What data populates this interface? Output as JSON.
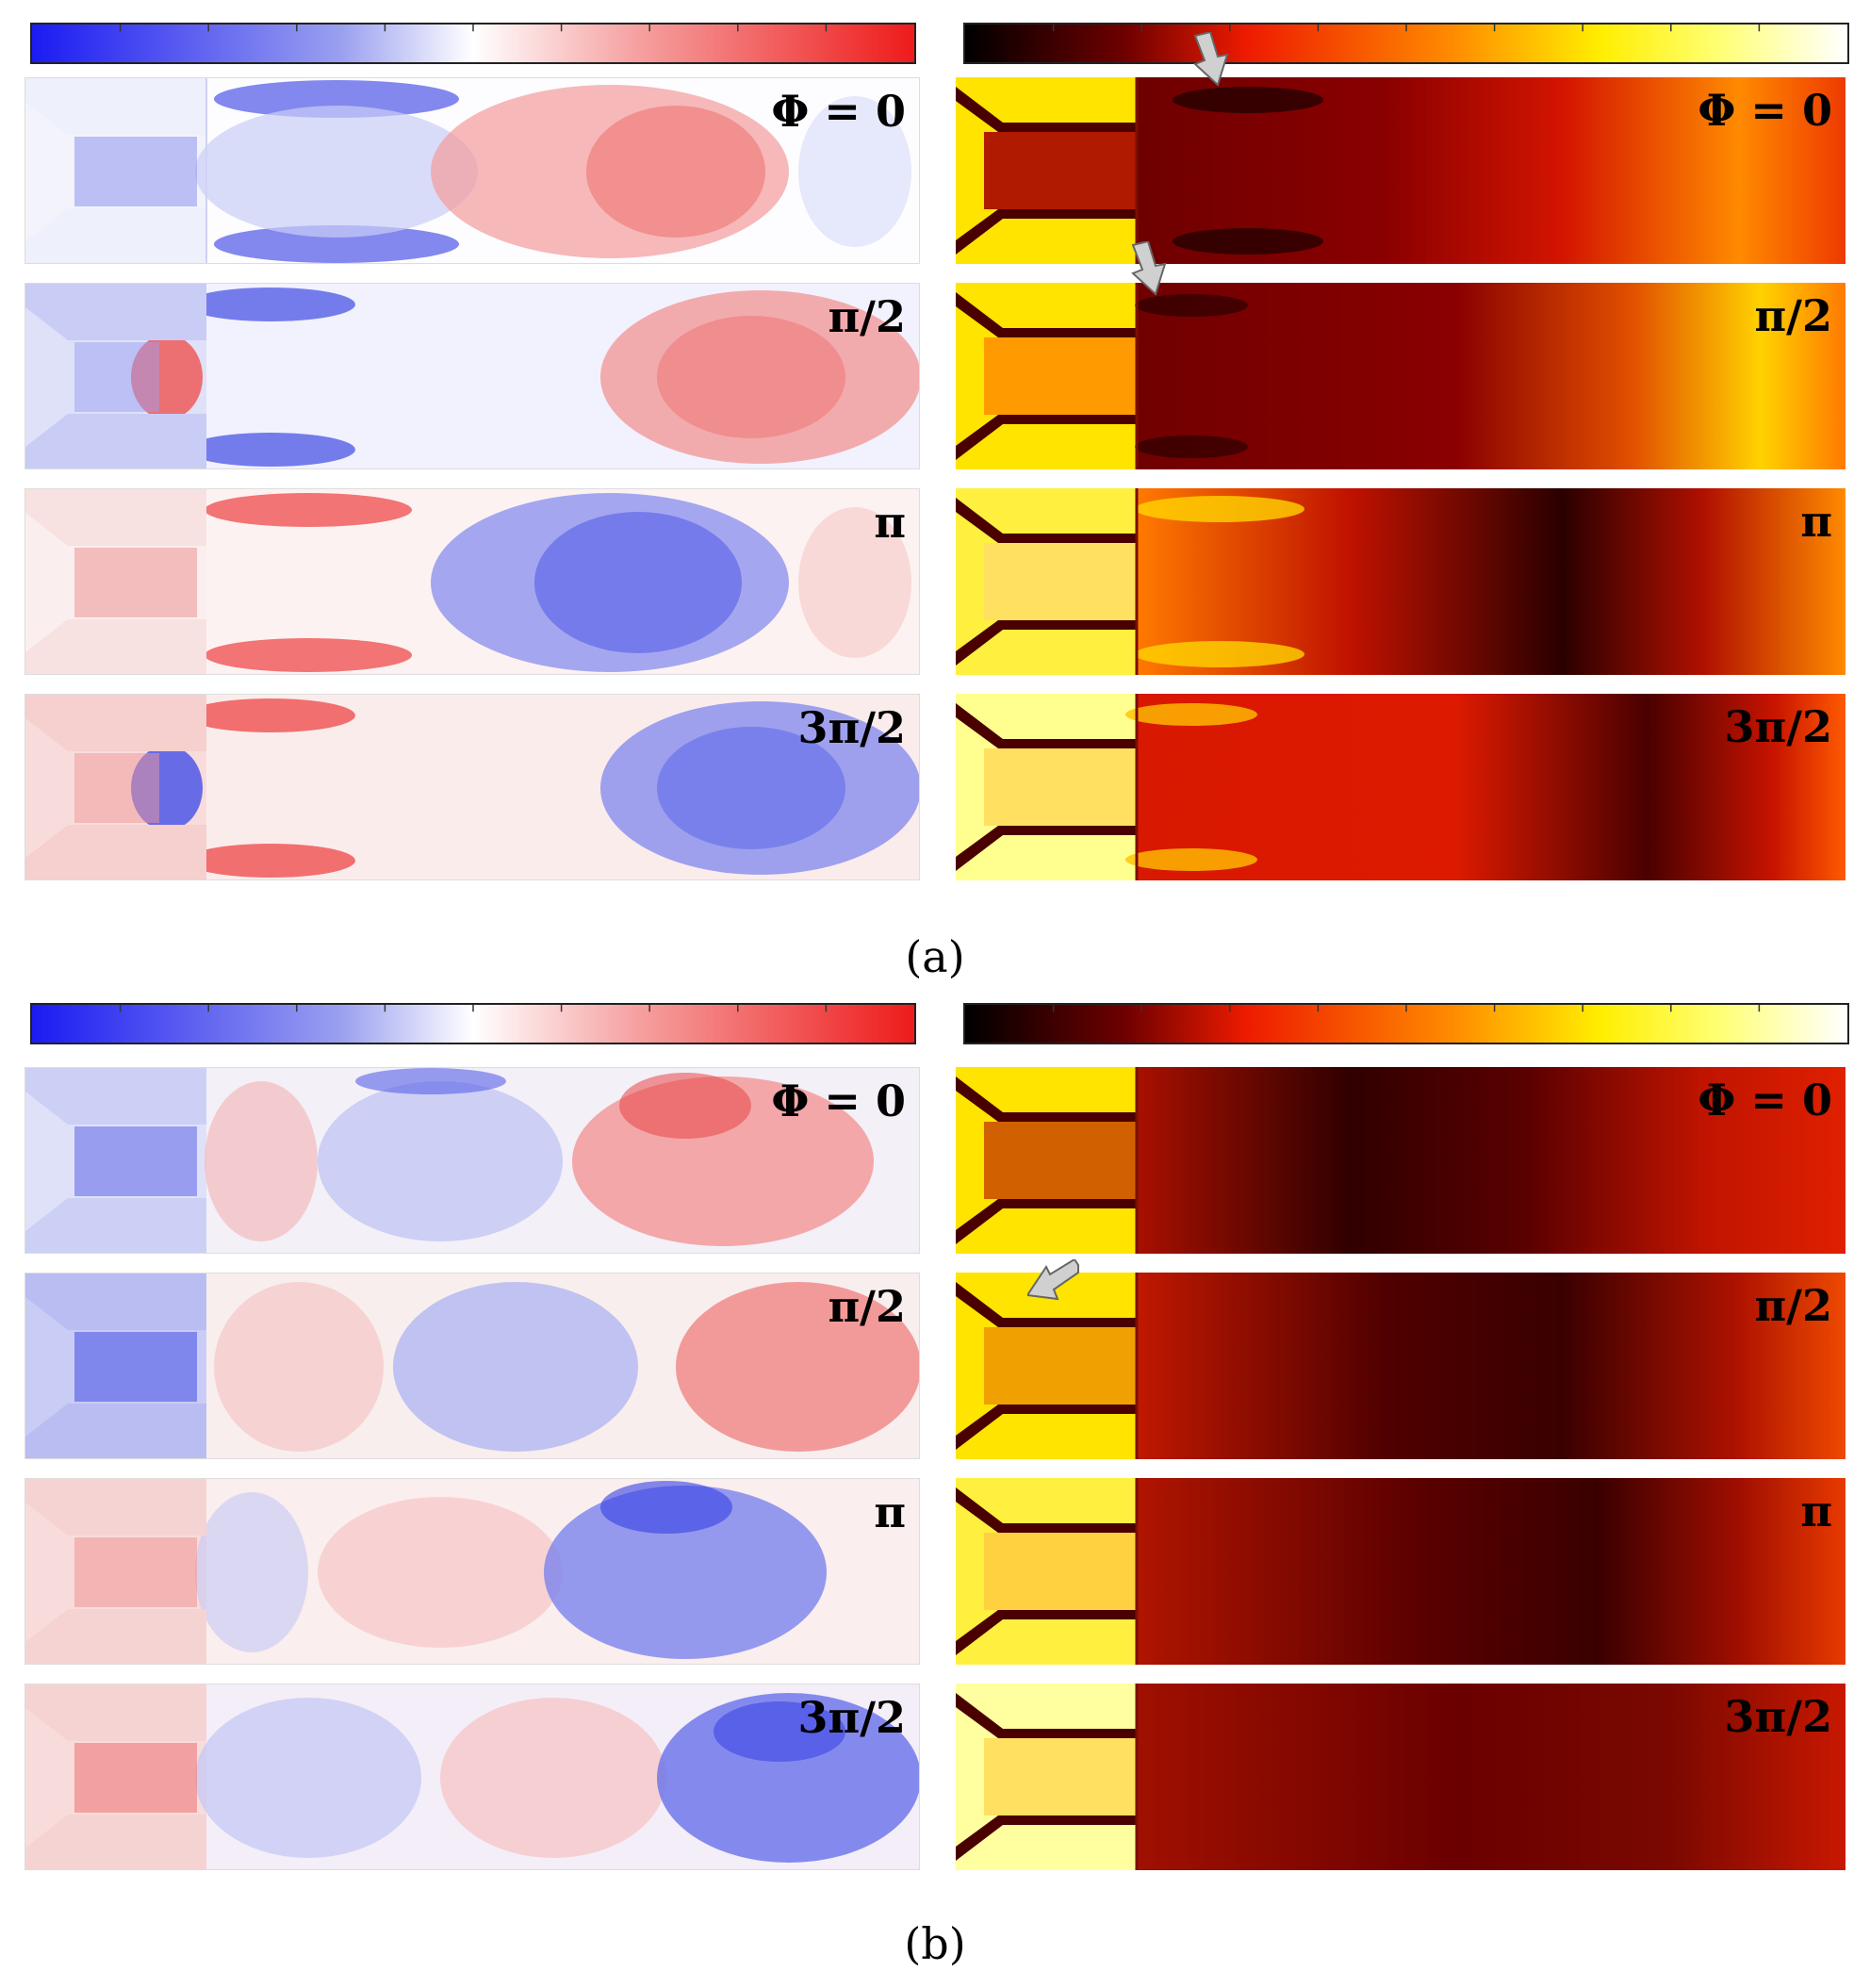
{
  "figure": {
    "parts": [
      {
        "caption": "(a)",
        "columns": [
          {
            "colormap": "blue-white-red",
            "phases": [
              "Φ = 0",
              "π/2",
              "π",
              "3π/2"
            ]
          },
          {
            "colormap": "black-red-yellow-white",
            "phases": [
              "Φ = 0",
              "π/2",
              "π",
              "3π/2"
            ]
          }
        ]
      },
      {
        "caption": "(b)",
        "columns": [
          {
            "colormap": "blue-white-red",
            "phases": [
              "Φ = 0",
              "π/2",
              "π",
              "3π/2"
            ]
          },
          {
            "colormap": "black-red-yellow-white",
            "phases": [
              "Φ = 0",
              "π/2",
              "π",
              "3π/2"
            ]
          }
        ]
      }
    ],
    "colors": {
      "diverging": [
        "#1b1bf2",
        "#8c8ff0",
        "#ffffff",
        "#f59a9a",
        "#ee1b1b"
      ],
      "heat": [
        "#000000",
        "#6e0000",
        "#ee1b00",
        "#ff8a00",
        "#ffee00",
        "#ffff60",
        "#ffffff"
      ]
    }
  }
}
